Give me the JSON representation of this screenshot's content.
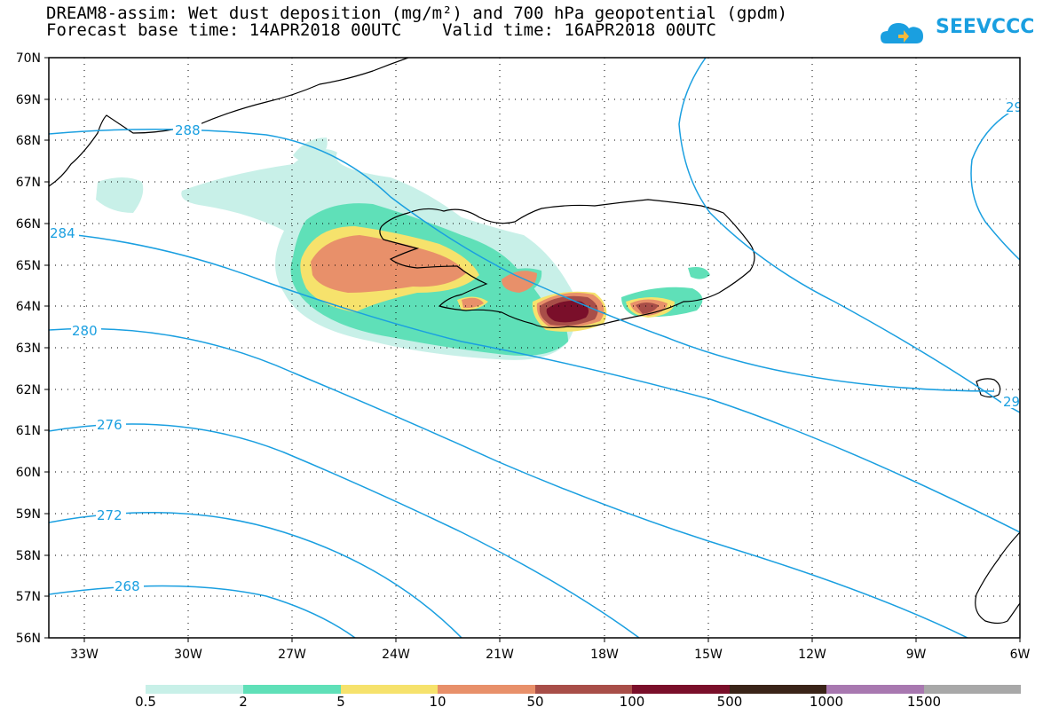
{
  "title": {
    "line1": "DREAM8-assim: Wet dust deposition (mg/m²) and 700 hPa geopotential (gpdm)",
    "line2": "Forecast base time: 14APR2018 00UTC    Valid time: 16APR2018 00UTC"
  },
  "logo": {
    "text": "SEEVCCC",
    "icon": "cloud-icon",
    "color": "#1a9fe0"
  },
  "map": {
    "lon_range": [
      -34,
      -6
    ],
    "lat_range": [
      56,
      70
    ],
    "lat_labels": [
      "70N",
      "69N",
      "68N",
      "67N",
      "66N",
      "65N",
      "64N",
      "63N",
      "62N",
      "61N",
      "60N",
      "59N",
      "58N",
      "57N",
      "56N"
    ],
    "lon_labels": [
      "33W",
      "30W",
      "27W",
      "24W",
      "21W",
      "18W",
      "15W",
      "12W",
      "9W",
      "6W"
    ],
    "contour_color": "#1a9fe0",
    "contour_labels": [
      "288",
      "284",
      "280",
      "276",
      "272",
      "268",
      "29",
      "29"
    ]
  },
  "colorbar": {
    "labels": [
      "0.5",
      "2",
      "5",
      "10",
      "50",
      "100",
      "500",
      "1000",
      "1500"
    ],
    "colors": [
      "#c8f0e8",
      "#5fe0b8",
      "#f6e26c",
      "#e8906a",
      "#a84e48",
      "#7a0f2a",
      "#3a2418",
      "#a878b0",
      "#a8a8a8"
    ]
  }
}
